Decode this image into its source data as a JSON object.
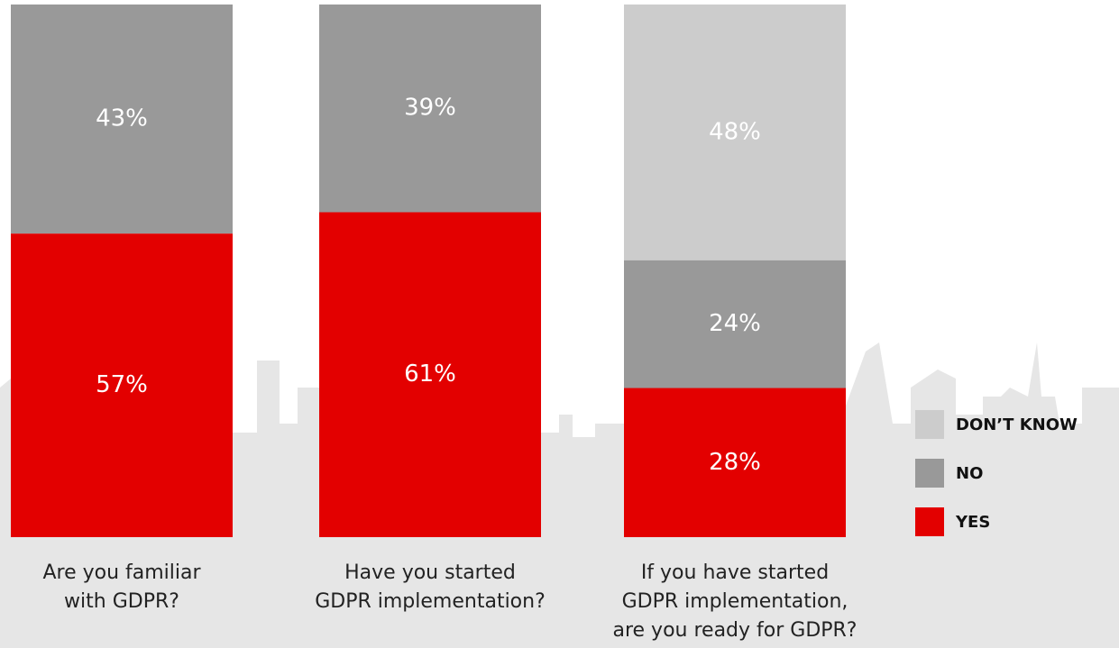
{
  "chart_data": {
    "type": "stacked-bar",
    "categories": [
      "Are you familiar\nwith GDPR?",
      "Have you started\nGDPR implementation?",
      "If you have started\nGDPR implementation,\nare you ready for GDPR?"
    ],
    "series": [
      {
        "name": "YES",
        "color": "#e30000",
        "values": [
          57,
          61,
          28
        ],
        "value_labels": [
          "57%",
          "61%",
          "28%"
        ]
      },
      {
        "name": "NO",
        "color": "#999999",
        "values": [
          43,
          39,
          24
        ],
        "value_labels": [
          "43%",
          "39%",
          "24%"
        ]
      },
      {
        "name": "DON’T KNOW",
        "color": "#cccccc",
        "values": [
          null,
          null,
          48
        ],
        "value_labels": [
          null,
          null,
          "48%"
        ]
      }
    ],
    "legend": "right"
  }
}
